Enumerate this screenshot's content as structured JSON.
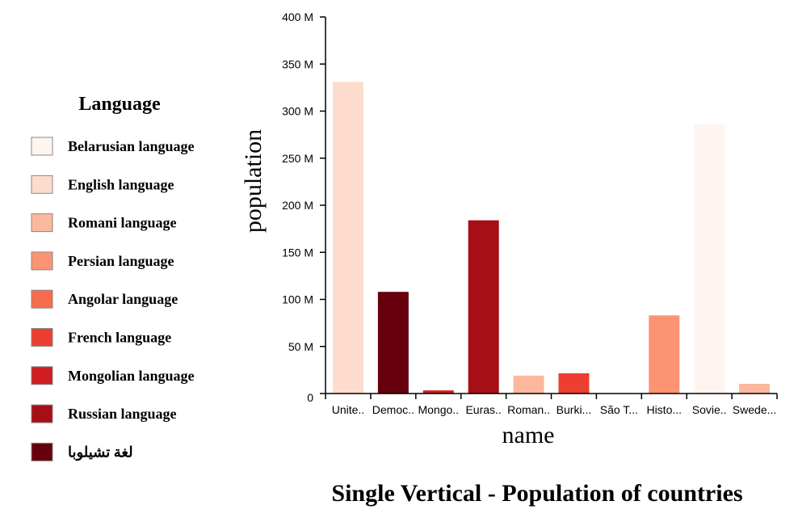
{
  "chart_data": {
    "type": "bar",
    "title": "Single Vertical - Population of countries",
    "xlabel": "name",
    "ylabel": "population",
    "ylim": [
      0,
      400000000
    ],
    "y_ticks": [
      {
        "value": 0,
        "label": "0"
      },
      {
        "value": 50000000,
        "label": "50 M"
      },
      {
        "value": 100000000,
        "label": "100 M"
      },
      {
        "value": 150000000,
        "label": "150 M"
      },
      {
        "value": 200000000,
        "label": "200 M"
      },
      {
        "value": 250000000,
        "label": "250 M"
      },
      {
        "value": 300000000,
        "label": "300 M"
      },
      {
        "value": 350000000,
        "label": "350 M"
      },
      {
        "value": 400000000,
        "label": "400 M"
      }
    ],
    "grid": false,
    "legend_title": "Language",
    "legend_position": "left",
    "legend": [
      {
        "label": "Belarusian language",
        "color": "#fff5f0"
      },
      {
        "label": "English language",
        "color": "#fedccd"
      },
      {
        "label": "Romani language",
        "color": "#fcb89e"
      },
      {
        "label": "Persian language",
        "color": "#fc9474"
      },
      {
        "label": "Angolar language",
        "color": "#f86c4e"
      },
      {
        "label": "French language",
        "color": "#ec3f30"
      },
      {
        "label": "Mongolian language",
        "color": "#d01d1f"
      },
      {
        "label": "Russian language",
        "color": "#a50f15"
      },
      {
        "label": "لغة تشيلوبا",
        "color": "#67000d"
      }
    ],
    "bars": [
      {
        "category": "Unite..",
        "value": 331000000,
        "color": "#fedccd"
      },
      {
        "category": "Democ..",
        "value": 108000000,
        "color": "#67000d"
      },
      {
        "category": "Mongo..",
        "value": 3300000,
        "color": "#d01d1f"
      },
      {
        "category": "Euras..",
        "value": 184000000,
        "color": "#a50f15"
      },
      {
        "category": "Roman..",
        "value": 19000000,
        "color": "#fcb89e"
      },
      {
        "category": "Burki...",
        "value": 21500000,
        "color": "#ec3f30"
      },
      {
        "category": "São T...",
        "value": 220000,
        "color": "#f86c4e"
      },
      {
        "category": "Histo...",
        "value": 83000000,
        "color": "#fc9474"
      },
      {
        "category": "Sovie..",
        "value": 286000000,
        "color": "#fff5f0"
      },
      {
        "category": "Swede...",
        "value": 10300000,
        "color": "#fcb89e"
      }
    ]
  }
}
